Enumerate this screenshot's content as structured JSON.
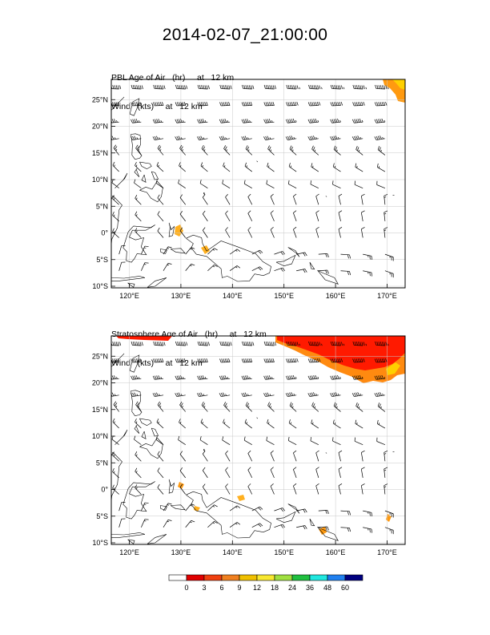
{
  "title": "2014-02-07_21:00:00",
  "panels": [
    {
      "id": "pbl",
      "field_line": "PBL Age of Air   (hr)     at   12 km",
      "wind_line": "Wind   (kts)     at   12 km",
      "lon_ticks": [
        "120°E",
        "130°E",
        "140°E",
        "150°E",
        "160°E",
        "170°E"
      ],
      "lat_ticks": [
        "25°N",
        "20°N",
        "15°N",
        "10°N",
        "5°N",
        "0°",
        "5°S",
        "10°S"
      ]
    },
    {
      "id": "strat",
      "field_line": "Stratosphere Age of Air   (hr)     at   12 km",
      "wind_line": "Wind   (kts)     at   12 km",
      "lon_ticks": [
        "120°E",
        "130°E",
        "140°E",
        "150°E",
        "160°E",
        "170°E"
      ],
      "lat_ticks": [
        "25°N",
        "20°N",
        "15°N",
        "10°N",
        "5°N",
        "0°",
        "5°S",
        "10°S"
      ]
    }
  ],
  "colorbar": {
    "labels": [
      "0",
      "3",
      "6",
      "9",
      "12",
      "18",
      "24",
      "36",
      "48",
      "60"
    ],
    "colors": [
      "#ffffff",
      "#e00000",
      "#f04010",
      "#f08020",
      "#f0c000",
      "#f8e830",
      "#a0e040",
      "#20c040",
      "#20e8e0",
      "#2080f0",
      "#000080"
    ]
  },
  "colors": {
    "land_outline": "#000000",
    "grid": "#c8c8c8",
    "field_high": "#ff1a00",
    "field_mid": "#ff7a10",
    "field_low": "#ffb020"
  }
}
